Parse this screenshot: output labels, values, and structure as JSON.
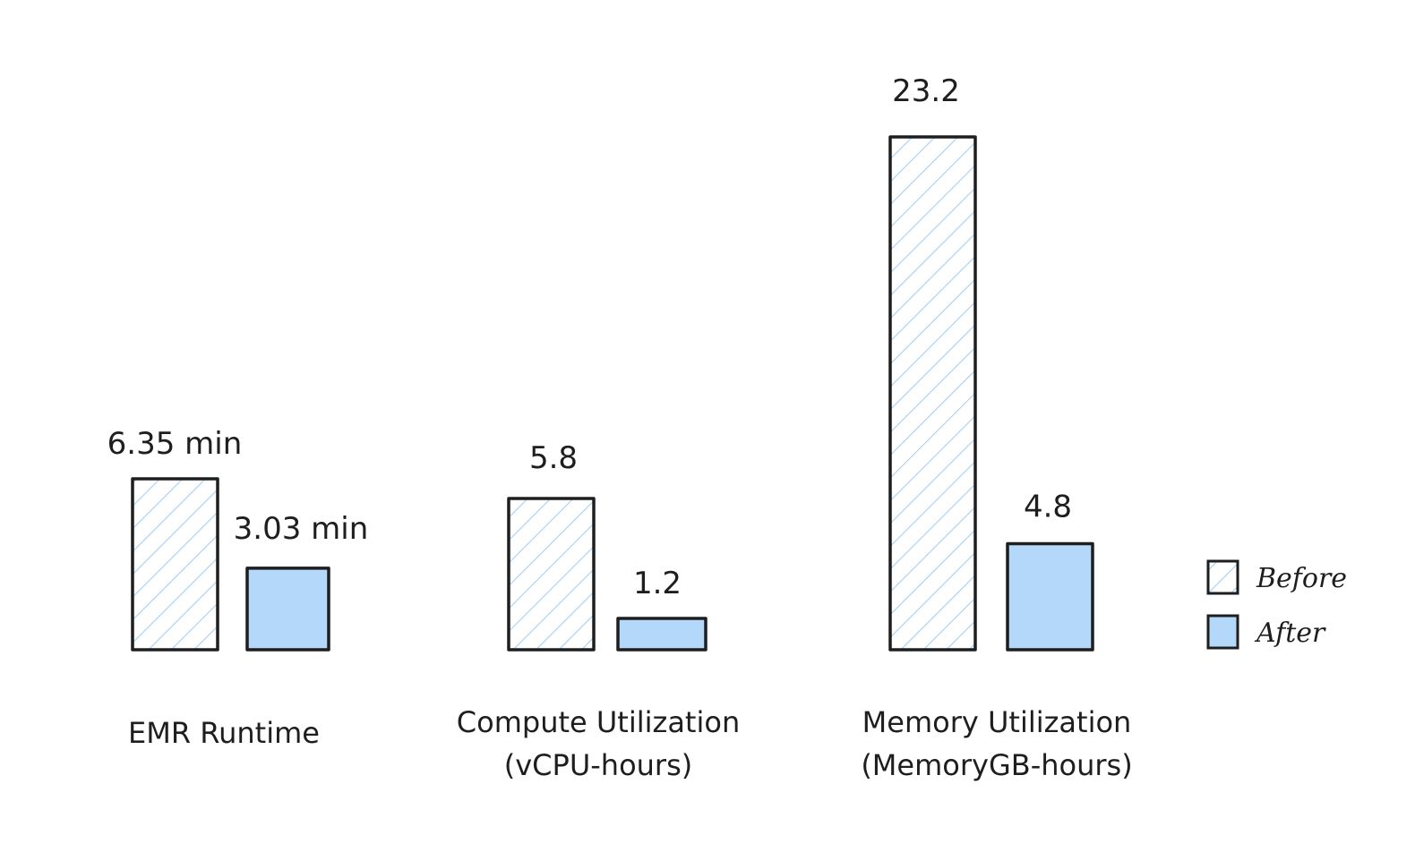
{
  "chart_data": {
    "type": "bar",
    "categories": [
      [
        "EMR Runtime"
      ],
      [
        "Compute Utilization",
        "(vCPU-hours)"
      ],
      [
        "Memory Utilization",
        "(MemoryGB-hours)"
      ]
    ],
    "series": [
      {
        "name": "Before",
        "values": [
          6.35,
          5.8,
          23.2
        ],
        "labels": [
          "6.35 min",
          "5.8",
          "23.2"
        ],
        "fill": "hatched",
        "color": "#a5d0f5"
      },
      {
        "name": "After",
        "values": [
          3.03,
          1.2,
          4.8
        ],
        "labels": [
          "3.03 min",
          "1.2",
          "4.8"
        ],
        "fill": "solid",
        "color": "#b3d8fa"
      }
    ],
    "stroke_color": "#1e1e1e",
    "legend_position": "right",
    "grid": false,
    "axes_visible": false
  }
}
